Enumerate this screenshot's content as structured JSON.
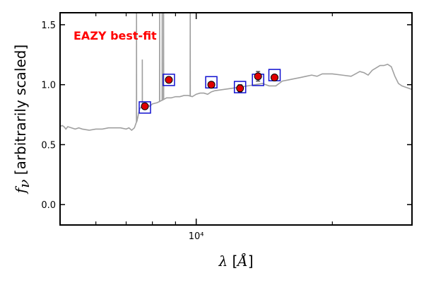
{
  "chart_data": {
    "type": "line",
    "annotation": "EAZY best-fit",
    "xlabel": "λ [Å]",
    "ylabel": "f_ν [arbitrarily scaled]",
    "ylabel_text": " [arbitrarily scaled]",
    "xscale": "log",
    "xlim": [
      5000,
      30000
    ],
    "ylim": [
      -0.17,
      1.6
    ],
    "yticks": [
      {
        "value": 0.0,
        "label": "0.0"
      },
      {
        "value": 0.5,
        "label": "0.5"
      },
      {
        "value": 1.0,
        "label": "1.0"
      },
      {
        "value": 1.5,
        "label": "1.5"
      }
    ],
    "xticks_labeled": [
      {
        "value": 10000,
        "label": "10⁴"
      }
    ],
    "grid": false,
    "colors": {
      "model": "#a0a0a0",
      "observed_face": "#e00000",
      "observed_edge": "#000000",
      "model_photometry_box": "#1010d0",
      "annotation": "#ff0000"
    },
    "series": [
      {
        "kind": "model_spectrum",
        "x": [
          5000,
          5050,
          5100,
          5150,
          5200,
          5300,
          5400,
          5500,
          5600,
          5800,
          6000,
          6200,
          6400,
          6600,
          6800,
          7000,
          7100,
          7200,
          7300,
          7400,
          7500,
          7600,
          7700,
          7800,
          7900,
          8000,
          8200,
          8400,
          8600,
          8800,
          9000,
          9200,
          9400,
          9600,
          9800,
          10000,
          10200,
          10400,
          10600,
          10800,
          11000,
          11500,
          12000,
          12500,
          13000,
          13500,
          14000,
          14500,
          15000,
          15500,
          16000,
          16500,
          17000,
          17500,
          18000,
          18500,
          19000,
          19500,
          20000,
          21000,
          22000,
          22500,
          23000,
          23500,
          24000,
          24500,
          25000,
          25500,
          26000,
          26500,
          27000,
          27500,
          28000,
          28500,
          29000,
          29500,
          30000
        ],
        "y": [
          0.65,
          0.66,
          0.65,
          0.63,
          0.65,
          0.64,
          0.63,
          0.64,
          0.63,
          0.62,
          0.63,
          0.63,
          0.64,
          0.64,
          0.64,
          0.63,
          0.64,
          0.62,
          0.64,
          0.7,
          0.8,
          0.82,
          0.82,
          0.83,
          0.82,
          0.84,
          0.85,
          0.87,
          0.89,
          0.89,
          0.9,
          0.9,
          0.91,
          0.91,
          0.9,
          0.92,
          0.93,
          0.93,
          0.92,
          0.94,
          0.95,
          0.96,
          0.97,
          0.98,
          0.99,
          1.0,
          1.01,
          0.99,
          0.99,
          1.03,
          1.04,
          1.05,
          1.06,
          1.07,
          1.08,
          1.07,
          1.09,
          1.09,
          1.09,
          1.08,
          1.07,
          1.09,
          1.11,
          1.1,
          1.08,
          1.12,
          1.14,
          1.16,
          1.16,
          1.17,
          1.15,
          1.07,
          1.01,
          0.99,
          0.98,
          0.97,
          0.96
        ]
      },
      {
        "kind": "emission_lines",
        "lines": [
          {
            "x": 7380,
            "peak": 1.6
          },
          {
            "x": 7600,
            "peak": 1.21
          },
          {
            "x": 8300,
            "peak": 1.6
          },
          {
            "x": 8410,
            "peak": 1.6
          },
          {
            "x": 8470,
            "peak": 1.6
          },
          {
            "x": 9700,
            "peak": 1.6
          }
        ]
      },
      {
        "kind": "model_photometry",
        "x": [
          7700,
          8700,
          10800,
          12500,
          13700,
          14900
        ],
        "y": [
          0.81,
          1.04,
          1.02,
          0.98,
          1.04,
          1.08
        ]
      },
      {
        "kind": "observed_photometry",
        "x": [
          7700,
          8700,
          10800,
          12500,
          13700,
          14900
        ],
        "y": [
          0.82,
          1.04,
          1.0,
          0.97,
          1.07,
          1.06
        ],
        "yerr": [
          0.015,
          0.015,
          0.02,
          0.03,
          0.04,
          0.02
        ]
      }
    ]
  }
}
